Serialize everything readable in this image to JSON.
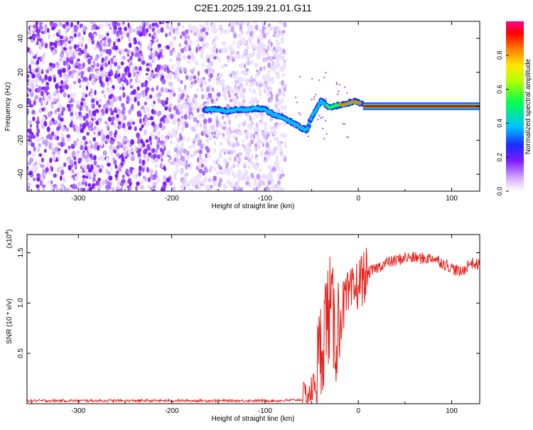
{
  "title": "C2E1.2025.139.21.01.G11",
  "top_plot": {
    "xlabel": "Height of straight line (km)",
    "ylabel": "Frequency (Hz)",
    "colorbar_label": "Normalized spectral amplitude",
    "colorbar_ticks": [
      "0.0",
      "0.2",
      "0.4",
      "0.6",
      "0.8"
    ]
  },
  "bottom_plot": {
    "xlabel": "Height of straight line (km)",
    "ylabel": "SNR (10 * v/v)",
    "scale_label": "(x10",
    "scale_exp": "4",
    "scale_close": ")"
  },
  "chart_data": [
    {
      "type": "heatmap",
      "title": "C2E1.2025.139.21.01.G11",
      "xlabel": "Height of straight line (km)",
      "ylabel": "Frequency (Hz)",
      "xlim": [
        -355,
        130
      ],
      "ylim": [
        -50,
        50
      ],
      "xticks": [
        -300,
        -200,
        -100,
        0,
        100
      ],
      "yticks": [
        -40,
        -20,
        0,
        20,
        40
      ],
      "colorbar": {
        "label": "Normalized spectral amplitude",
        "range": [
          0,
          1
        ],
        "ticks": [
          0.0,
          0.2,
          0.4,
          0.6,
          0.8
        ],
        "colormap": "rainbow (purple-blue-cyan-green-yellow-red-magenta)"
      },
      "noise_region_x": [
        -355,
        -78
      ],
      "ridge": {
        "x": [
          -165,
          -150,
          -140,
          -130,
          -120,
          -110,
          -100,
          -90,
          -80,
          -70,
          -60,
          -55,
          -50,
          -45,
          -40,
          -35,
          -30,
          -25,
          -20,
          -15,
          -10,
          -5,
          0,
          5,
          10,
          20,
          40,
          60,
          80,
          100,
          130
        ],
        "y": [
          -2,
          -2,
          -3,
          -2,
          -2,
          -1,
          -2,
          -5,
          -7,
          -10,
          -13,
          -14,
          -6,
          -2,
          3,
          1,
          -1,
          0,
          1,
          1,
          2,
          3,
          2,
          1,
          0,
          0,
          0,
          0,
          0,
          0,
          0
        ]
      }
    },
    {
      "type": "line",
      "xlabel": "Height of straight line (km)",
      "ylabel": "SNR (10 * v/v)",
      "y_scale_factor": "x10^4",
      "xlim": [
        -355,
        130
      ],
      "ylim": [
        0,
        1.68
      ],
      "xticks": [
        -300,
        -200,
        -100,
        0,
        100
      ],
      "yticks": [
        0.5,
        1.0,
        1.5
      ],
      "grid": false,
      "series": [
        {
          "color": "#e8201a",
          "x": [
            -355,
            -300,
            -250,
            -200,
            -150,
            -100,
            -80,
            -60,
            -55,
            -50,
            -45,
            -40,
            -35,
            -30,
            -25,
            -20,
            -15,
            -10,
            -5,
            0,
            5,
            10,
            15,
            20,
            30,
            40,
            50,
            60,
            70,
            80,
            90,
            100,
            110,
            120,
            128
          ],
          "y": [
            0.03,
            0.03,
            0.03,
            0.03,
            0.03,
            0.03,
            0.03,
            0.04,
            0.08,
            0.12,
            0.25,
            0.55,
            0.85,
            0.95,
            0.7,
            0.85,
            1.0,
            1.05,
            1.1,
            1.2,
            1.25,
            1.3,
            1.32,
            1.35,
            1.4,
            1.42,
            1.45,
            1.45,
            1.44,
            1.45,
            1.4,
            1.35,
            1.3,
            1.4,
            1.38
          ]
        }
      ]
    }
  ]
}
